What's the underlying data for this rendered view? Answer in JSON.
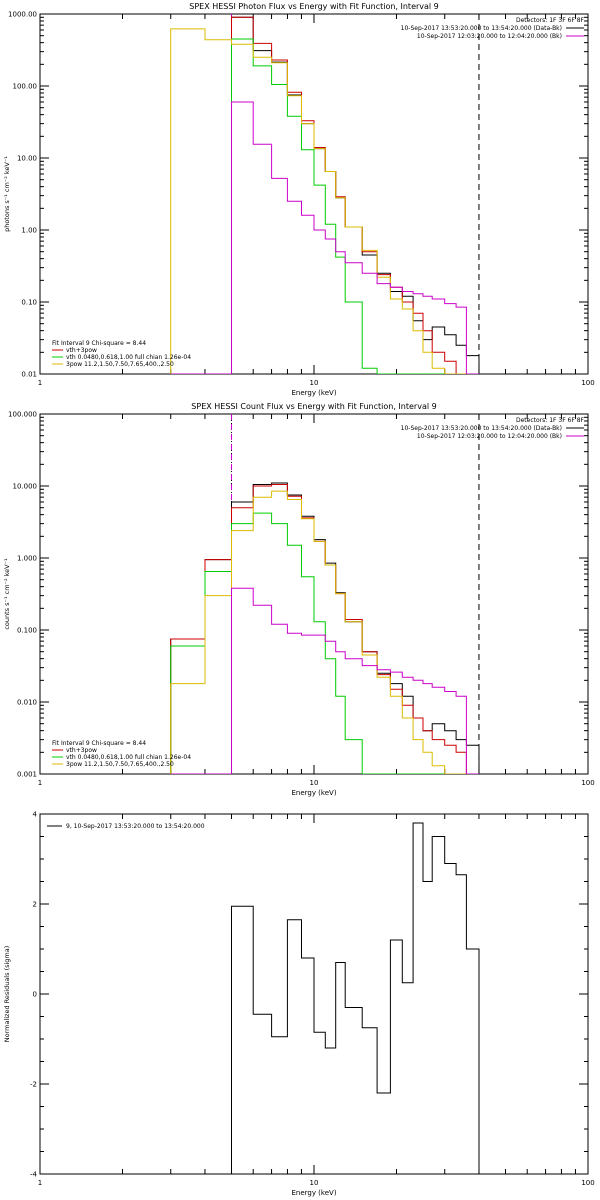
{
  "chart_data": [
    {
      "type": "line",
      "title": "SPEX HESSI Photon Flux vs Energy with Fit Function, Interval 9",
      "xlabel": "Energy (keV)",
      "ylabel": "photons s⁻¹ cm⁻² keV⁻¹",
      "xscale": "log",
      "yscale": "log",
      "xlim": [
        1,
        100
      ],
      "ylim": [
        0.01,
        1000
      ],
      "x_ticks": [
        "1",
        "10",
        "100"
      ],
      "y_ticks": [
        "0.01",
        "0.10",
        "1.00",
        "10.00",
        "100.00",
        "1000.00"
      ],
      "legend_top": {
        "position": "top-right",
        "heading": "Detectors: 1F 3F 6F 8F",
        "entries": [
          {
            "text": "10-Sep-2017 13:53:20.000 to 13:54:20.000 (Data-Bk)",
            "color": "#000000"
          },
          {
            "text": "10-Sep-2017 12:03:20.000 to 12:04:20.000 (Bk)",
            "color": "#cc00cc"
          }
        ]
      },
      "legend_bottom": {
        "position": "bottom-left",
        "heading": "Fit Interval 9   Chi-square = 8.44",
        "entries": [
          {
            "text": "vth+3pow",
            "color": "#cc0000"
          },
          {
            "text": "vth 0.0480,0.618,1.00  full chian 1.26e-04",
            "color": "#00cc00"
          },
          {
            "text": "3pow 11.2,1.50,7.50,7.65,400.,2.50",
            "color": "#ddbb00"
          }
        ]
      },
      "vlines": [
        {
          "x": 5,
          "style": "dotted",
          "color": "#000000"
        },
        {
          "x": 5,
          "style": "dashed",
          "color": "#cc00cc"
        },
        {
          "x": 40,
          "style": "dashed",
          "color": "#000000"
        }
      ],
      "edges": [
        3,
        4,
        5,
        6,
        7,
        8,
        9,
        10,
        11,
        12,
        13,
        15,
        17,
        19,
        21,
        23,
        25,
        27,
        30,
        33,
        36,
        40
      ],
      "series": [
        {
          "name": "Data-Bk",
          "color": "#000000",
          "values": [
            0,
            0,
            900,
            310,
            215,
            75,
            30,
            13.5,
            6.5,
            2.8,
            1.1,
            0.45,
            0.25,
            0.14,
            0.12,
            0.055,
            0.03,
            0.045,
            0.035,
            0.025,
            0.018
          ]
        },
        {
          "name": "vth+3pow",
          "color": "#cc0000",
          "values": [
            0,
            0,
            900,
            390,
            230,
            82,
            33,
            14,
            6.5,
            2.9,
            1.1,
            0.5,
            0.24,
            0.16,
            0.1,
            0.07,
            0.04,
            0.02,
            0.015,
            0.01,
            0
          ]
        },
        {
          "name": "vth",
          "color": "#00cc00",
          "values": [
            0,
            0,
            450,
            190,
            105,
            38,
            13,
            4.2,
            1.2,
            0.42,
            0.1,
            0.012,
            0,
            0,
            0,
            0,
            0,
            0,
            0,
            0,
            0
          ]
        },
        {
          "name": "3pow",
          "color": "#ddbb00",
          "values": [
            620,
            440,
            380,
            250,
            210,
            73,
            30,
            13.5,
            6.5,
            2.8,
            1.1,
            0.52,
            0.22,
            0.11,
            0.08,
            0.04,
            0.02,
            0.012,
            0.008,
            0,
            0
          ]
        },
        {
          "name": "Bk",
          "color": "#cc00cc",
          "values": [
            0,
            0,
            60,
            15.5,
            5.2,
            2.5,
            1.6,
            1.0,
            0.75,
            0.5,
            0.35,
            0.25,
            0.18,
            0.16,
            0.14,
            0.13,
            0.12,
            0.11,
            0.095,
            0.085,
            0
          ]
        }
      ]
    },
    {
      "type": "line",
      "title": "SPEX HESSI Count Flux vs Energy with Fit Function, Interval 9",
      "xlabel": "Energy (keV)",
      "ylabel": "counts s⁻¹ cm⁻² keV⁻¹",
      "xscale": "log",
      "yscale": "log",
      "xlim": [
        1,
        100
      ],
      "ylim": [
        0.001,
        100
      ],
      "x_ticks": [
        "1",
        "10",
        "100"
      ],
      "y_ticks": [
        "0.001",
        "0.010",
        "0.100",
        "1.000",
        "10.000",
        "100.000"
      ],
      "legend_top": {
        "position": "top-right",
        "heading": "Detectors: 1F 3F 6F 8F",
        "entries": [
          {
            "text": "10-Sep-2017 13:53:20.000 to 13:54:20.000 (Data-Bk)",
            "color": "#000000"
          },
          {
            "text": "10-Sep-2017 12:03:20.000 to 12:04:20.000 (Bk)",
            "color": "#cc00cc"
          }
        ]
      },
      "legend_bottom": {
        "position": "bottom-left",
        "heading": "Fit Interval 9   Chi-square = 8.44",
        "entries": [
          {
            "text": "vth+3pow",
            "color": "#cc0000"
          },
          {
            "text": "vth 0.0480,0.618,1.00  full chian 1.26e-04",
            "color": "#00cc00"
          },
          {
            "text": "3pow 11.2,1.50,7.50,7.65,400.,2.50",
            "color": "#ddbb00"
          }
        ]
      },
      "vlines": [
        {
          "x": 5,
          "style": "dotted",
          "color": "#000000"
        },
        {
          "x": 5,
          "style": "dashed",
          "color": "#cc00cc"
        },
        {
          "x": 40,
          "style": "dashed",
          "color": "#000000"
        }
      ],
      "edges": [
        3,
        4,
        5,
        6,
        7,
        8,
        9,
        10,
        11,
        12,
        13,
        15,
        17,
        19,
        21,
        23,
        25,
        27,
        30,
        33,
        36,
        40
      ],
      "series": [
        {
          "name": "Data-Bk",
          "color": "#000000",
          "values": [
            0.075,
            0.95,
            6.0,
            10.5,
            11.0,
            7.5,
            3.8,
            1.8,
            0.85,
            0.33,
            0.13,
            0.05,
            0.025,
            0.018,
            0.012,
            0.006,
            0.004,
            0.005,
            0.004,
            0.003,
            0.0025
          ]
        },
        {
          "name": "vth+3pow",
          "color": "#cc0000",
          "values": [
            0.075,
            0.95,
            5.0,
            10.0,
            10.5,
            7.2,
            3.6,
            1.7,
            0.8,
            0.32,
            0.14,
            0.05,
            0.024,
            0.015,
            0.009,
            0.006,
            0.004,
            0.003,
            0.0025,
            0.002,
            0
          ]
        },
        {
          "name": "vth",
          "color": "#00cc00",
          "values": [
            0.06,
            0.65,
            3.0,
            4.2,
            3.0,
            1.5,
            0.55,
            0.13,
            0.04,
            0.012,
            0.003,
            0,
            0,
            0,
            0,
            0,
            0,
            0,
            0,
            0,
            0
          ]
        },
        {
          "name": "3pow",
          "color": "#ddbb00",
          "values": [
            0.018,
            0.3,
            2.4,
            7.0,
            8.5,
            6.5,
            3.5,
            1.7,
            0.8,
            0.32,
            0.13,
            0.045,
            0.022,
            0.012,
            0.006,
            0.003,
            0.002,
            0.0013,
            0,
            0,
            0
          ]
        },
        {
          "name": "Bk",
          "color": "#cc00cc",
          "values": [
            0,
            0,
            0.38,
            0.22,
            0.12,
            0.09,
            0.085,
            0.085,
            0.07,
            0.05,
            0.04,
            0.032,
            0.028,
            0.026,
            0.022,
            0.02,
            0.018,
            0.016,
            0.014,
            0.012,
            0
          ]
        }
      ]
    },
    {
      "type": "line",
      "title": "",
      "xlabel": "Energy (keV)",
      "ylabel": "Normalized Residuals (sigma)",
      "xscale": "log",
      "yscale": "linear",
      "xlim": [
        1,
        100
      ],
      "ylim": [
        -4,
        4
      ],
      "x_ticks": [
        "1",
        "10",
        "100"
      ],
      "y_ticks": [
        "-4",
        "-2",
        "0",
        "2",
        "4"
      ],
      "legend_top": {
        "position": "top-left",
        "heading": "",
        "entries": [
          {
            "text": "9, 10-Sep-2017 13:53:20.000 to 13:54:20.000",
            "color": "#000000"
          }
        ]
      },
      "edges": [
        5,
        6,
        7,
        8,
        9,
        10,
        11,
        12,
        13,
        15,
        17,
        19,
        21,
        23,
        25,
        27,
        30,
        33,
        36,
        40
      ],
      "series": [
        {
          "name": "9, 10-Sep-2017 13:53:20.000 to 13:54:20.000",
          "color": "#000000",
          "values": [
            1.95,
            -0.45,
            -0.95,
            1.65,
            0.8,
            -0.85,
            -1.2,
            0.7,
            -0.3,
            -0.75,
            -2.2,
            1.2,
            0.25,
            3.8,
            2.5,
            3.5,
            2.9,
            2.65,
            1.0
          ]
        }
      ]
    }
  ]
}
